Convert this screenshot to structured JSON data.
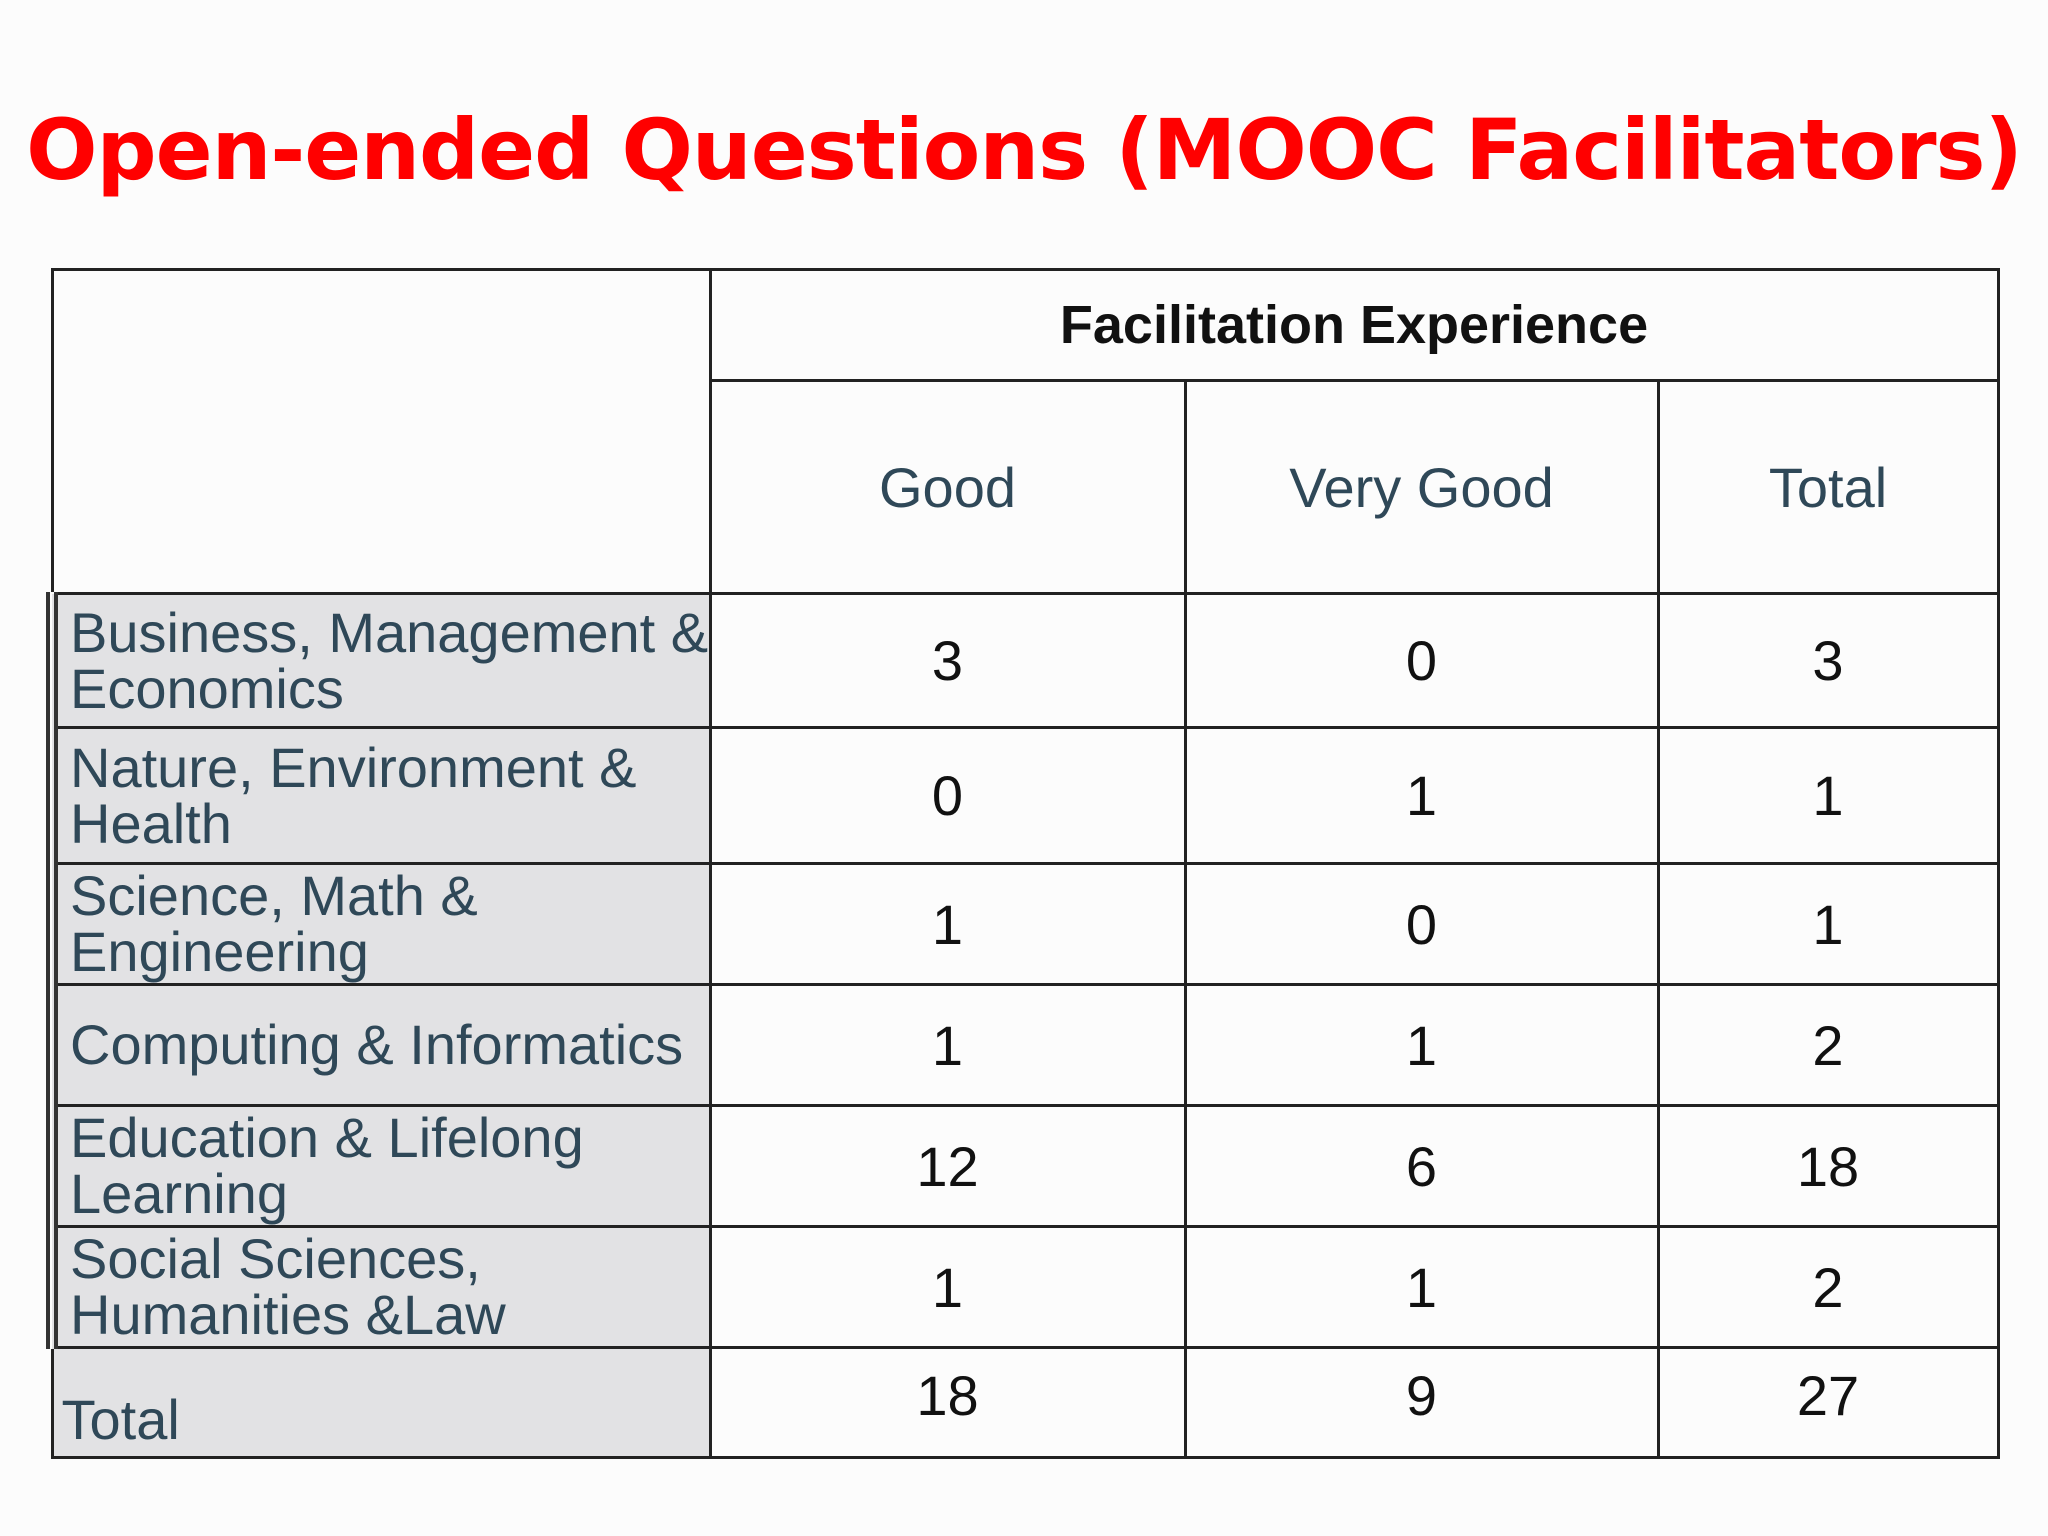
{
  "slide": {
    "title": "Open-ended Questions (MOOC Facilitators)"
  },
  "table": {
    "group_header": "Facilitation Experience",
    "columns": [
      "Good",
      "Very Good",
      "Total"
    ],
    "rows": [
      {
        "label": "Business, Management & Economics",
        "values": [
          "3",
          "0",
          "3"
        ]
      },
      {
        "label": "Nature, Environment & Health",
        "values": [
          "0",
          "1",
          "1"
        ]
      },
      {
        "label": "Science, Math & Engineering",
        "values": [
          "1",
          "0",
          "1"
        ]
      },
      {
        "label": "Computing & Informatics",
        "values": [
          "1",
          "1",
          "2"
        ]
      },
      {
        "label": "Education & Lifelong Learning",
        "values": [
          "12",
          "6",
          "18"
        ]
      },
      {
        "label": "Social Sciences, Humanities &Law",
        "values": [
          "1",
          "1",
          "2"
        ]
      }
    ],
    "total_row": {
      "label": "Total",
      "values": [
        "18",
        "9",
        "27"
      ]
    }
  },
  "colors": {
    "title": "#ff0000",
    "header_text": "#2f4858",
    "label_background": "#e2e2e4",
    "border": "#222222"
  }
}
